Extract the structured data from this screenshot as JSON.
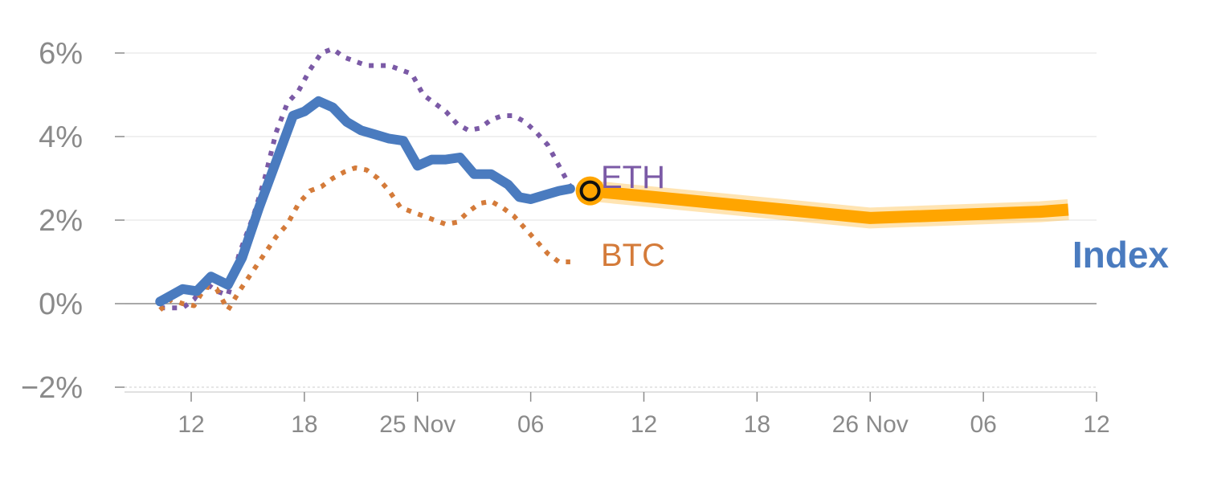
{
  "chart_data": {
    "type": "line",
    "title": "",
    "xlabel": "",
    "ylabel": "",
    "y_unit": "%",
    "ylim": [
      -2.1,
      6.3
    ],
    "yticks": [
      {
        "value": -2,
        "label": "−2%"
      },
      {
        "value": 0,
        "label": "0%"
      },
      {
        "value": 2,
        "label": "2%"
      },
      {
        "value": 4,
        "label": "4%"
      },
      {
        "value": 6,
        "label": "6%"
      }
    ],
    "xlim": [
      0,
      34.5
    ],
    "xticks": [
      {
        "x": 2,
        "label": "12"
      },
      {
        "x": 6,
        "label": "18"
      },
      {
        "x": 10,
        "label": "25 Nov"
      },
      {
        "x": 14,
        "label": "06"
      },
      {
        "x": 18,
        "label": "12"
      },
      {
        "x": 22,
        "label": "18"
      },
      {
        "x": 26,
        "label": "26 Nov"
      },
      {
        "x": 30,
        "label": "06"
      },
      {
        "x": 34,
        "label": "12"
      }
    ],
    "series": [
      {
        "name": "ETH",
        "label": "ETH",
        "color": "#7b5aa6",
        "style": "dotted",
        "x": [
          0.9,
          1.3,
          1.7,
          2.1,
          2.5,
          2.9,
          3.3,
          3.7,
          4.2,
          4.6,
          5.0,
          5.4,
          5.8,
          6.2,
          6.6,
          7.0,
          7.4,
          7.8,
          8.2,
          8.6,
          9.0,
          9.4,
          9.8,
          10.2,
          10.6,
          11.0,
          11.4,
          11.8,
          12.2,
          12.6,
          13.0,
          13.4,
          13.8,
          14.2,
          14.6,
          15.0,
          15.4
        ],
        "values": [
          -0.1,
          -0.1,
          -0.1,
          0.1,
          0.5,
          0.3,
          0.2,
          1.2,
          2.1,
          3.0,
          4.1,
          4.8,
          5.1,
          5.6,
          6.0,
          6.1,
          5.9,
          5.8,
          5.7,
          5.7,
          5.7,
          5.6,
          5.5,
          5.0,
          4.8,
          4.6,
          4.3,
          4.15,
          4.2,
          4.4,
          4.5,
          4.5,
          4.35,
          4.1,
          3.8,
          3.3,
          2.8
        ]
      },
      {
        "name": "BTC",
        "label": "BTC",
        "color": "#d47b3a",
        "style": "dotted",
        "x": [
          0.9,
          1.3,
          1.7,
          2.1,
          2.5,
          2.9,
          3.3,
          3.7,
          4.2,
          4.6,
          5.0,
          5.4,
          5.8,
          6.2,
          6.6,
          7.0,
          7.4,
          7.8,
          8.2,
          8.6,
          9.0,
          9.4,
          9.8,
          10.2,
          10.6,
          11.0,
          11.4,
          11.8,
          12.2,
          12.6,
          13.0,
          13.4,
          13.8,
          14.2,
          14.6,
          15.0,
          15.4
        ],
        "values": [
          -0.15,
          0.1,
          0.0,
          -0.05,
          0.4,
          0.35,
          -0.15,
          0.3,
          0.8,
          1.2,
          1.6,
          1.9,
          2.4,
          2.7,
          2.8,
          3.0,
          3.15,
          3.25,
          3.2,
          3.0,
          2.7,
          2.3,
          2.2,
          2.1,
          2.0,
          1.9,
          1.95,
          2.2,
          2.4,
          2.45,
          2.3,
          2.1,
          1.8,
          1.5,
          1.2,
          1.0,
          1.0
        ]
      },
      {
        "name": "Index",
        "label": "Index",
        "color": "#4a7bbf",
        "style": "solid",
        "x": [
          0.9,
          1.3,
          1.7,
          2.2,
          2.7,
          3.3,
          3.8,
          4.4,
          5.0,
          5.6,
          6.0,
          6.5,
          7.0,
          7.5,
          8.0,
          8.5,
          9.0,
          9.5,
          10.0,
          10.5,
          11.0,
          11.5,
          12.0,
          12.6,
          13.2,
          13.6,
          14.0,
          14.5,
          15.0,
          15.4
        ],
        "values": [
          0.05,
          0.2,
          0.35,
          0.3,
          0.65,
          0.45,
          1.1,
          2.3,
          3.4,
          4.5,
          4.6,
          4.85,
          4.7,
          4.35,
          4.15,
          4.05,
          3.95,
          3.9,
          3.3,
          3.45,
          3.45,
          3.5,
          3.1,
          3.1,
          2.85,
          2.55,
          2.5,
          2.6,
          2.7,
          2.75
        ]
      },
      {
        "name": "Index projection",
        "color": "#ffa500",
        "style": "band",
        "x": [
          16.1,
          26.0,
          32.0,
          33.0
        ],
        "values": [
          2.7,
          2.05,
          2.2,
          2.25
        ]
      }
    ],
    "marker": {
      "x": 16.1,
      "value": 2.7
    },
    "legend": "inline-labels"
  }
}
